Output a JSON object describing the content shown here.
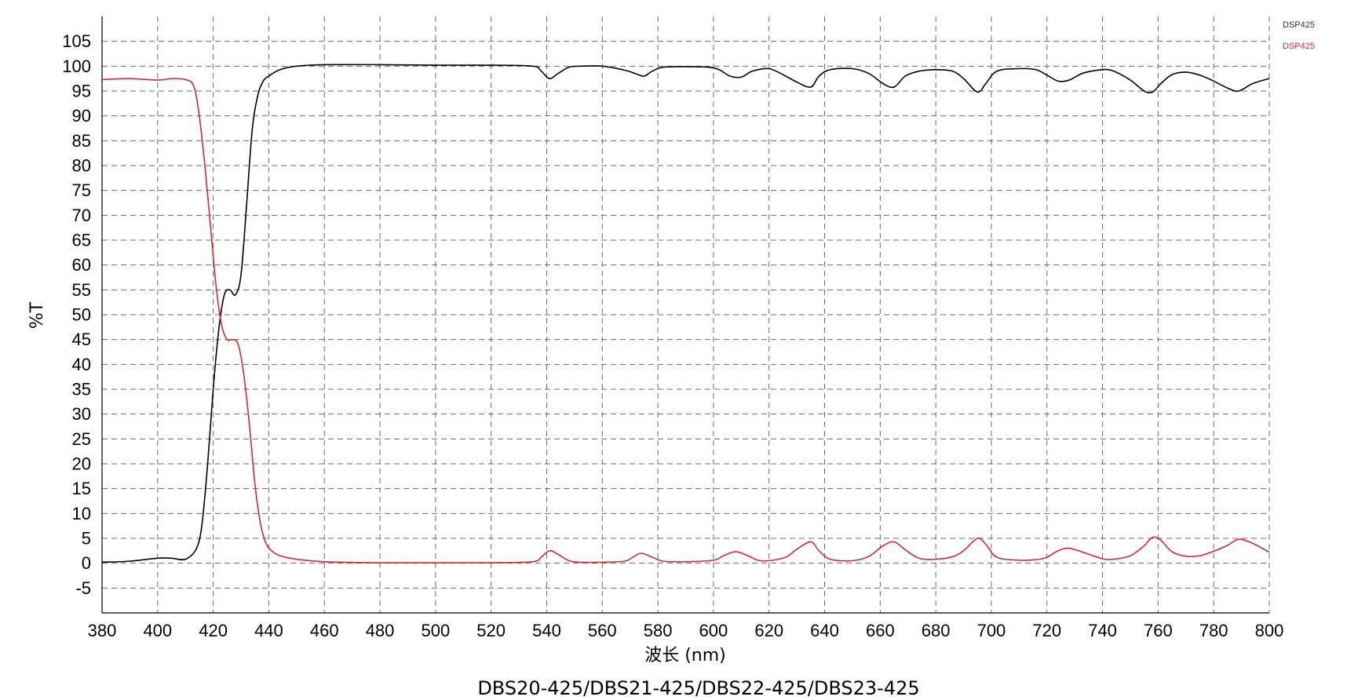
{
  "chart_data": {
    "type": "line",
    "title": "",
    "caption": "DBS20-425/DBS21-425/DBS22-425/DBS23-425",
    "xlabel": "波长 (nm)",
    "ylabel": "%T",
    "xlim": [
      380,
      800
    ],
    "ylim": [
      -10,
      110
    ],
    "xticks": [
      380,
      400,
      420,
      440,
      460,
      480,
      500,
      520,
      540,
      560,
      580,
      600,
      620,
      640,
      660,
      680,
      700,
      720,
      740,
      760,
      780,
      800
    ],
    "yticks": [
      -5,
      0,
      5,
      10,
      15,
      20,
      25,
      30,
      35,
      40,
      45,
      50,
      55,
      60,
      65,
      70,
      75,
      80,
      85,
      90,
      95,
      100,
      105
    ],
    "grid": true,
    "legend_position": "top-right",
    "series": [
      {
        "name": "DSP425",
        "color": "#000000",
        "x": [
          380,
          390,
          400,
          405,
          410,
          414,
          416,
          418,
          420,
          422,
          424,
          426,
          428,
          430,
          432,
          434,
          436,
          438,
          440,
          444,
          450,
          460,
          480,
          500,
          520,
          535,
          538,
          541,
          544,
          548,
          552,
          560,
          568,
          572,
          575,
          578,
          582,
          590,
          598,
          602,
          606,
          610,
          614,
          620,
          626,
          630,
          635,
          638,
          642,
          650,
          656,
          661,
          665,
          669,
          674,
          680,
          686,
          690,
          695,
          698,
          702,
          710,
          716,
          720,
          724,
          728,
          733,
          740,
          744,
          750,
          755,
          758,
          761,
          765,
          770,
          775,
          780,
          785,
          789,
          794,
          800
        ],
        "y": [
          0.2,
          0.4,
          1,
          1,
          0.8,
          3,
          8,
          20,
          35,
          47,
          54,
          55,
          54,
          58,
          72,
          87,
          94,
          97,
          98,
          99.3,
          100,
          100.3,
          100.3,
          100.2,
          100.2,
          100,
          99,
          97.5,
          98.5,
          99.8,
          100,
          100,
          99.2,
          98.5,
          98,
          99,
          99.8,
          99.9,
          99.8,
          99.3,
          98,
          97.8,
          99,
          99.5,
          98,
          96.8,
          95.8,
          98,
          99.3,
          99.5,
          98.5,
          96.5,
          95.8,
          98,
          99,
          99.3,
          99,
          97.5,
          94.8,
          96.5,
          99,
          99.5,
          99.3,
          98.2,
          97,
          97.2,
          98.6,
          99.3,
          99,
          97.2,
          95,
          94.8,
          96.5,
          98.3,
          98.8,
          98.2,
          97,
          95.6,
          95,
          96.5,
          97.5
        ]
      },
      {
        "name": "DSP425",
        "color": "#d42a2a",
        "x": [
          380,
          390,
          400,
          405,
          410,
          413,
          415,
          417,
          419,
          421,
          423,
          425,
          427,
          429,
          431,
          433,
          435,
          437,
          439,
          441,
          444,
          450,
          460,
          480,
          500,
          520,
          535,
          538,
          541,
          544,
          548,
          552,
          560,
          568,
          571,
          574,
          578,
          582,
          590,
          600,
          604,
          608,
          612,
          616,
          620,
          626,
          630,
          635,
          638,
          642,
          650,
          656,
          661,
          665,
          669,
          674,
          680,
          686,
          690,
          695,
          698,
          702,
          710,
          716,
          720,
          724,
          728,
          734,
          740,
          744,
          750,
          755,
          758,
          761,
          765,
          770,
          775,
          780,
          785,
          789,
          794,
          800
        ],
        "y": [
          97.3,
          97.5,
          97.2,
          97.5,
          97.3,
          96,
          90,
          80,
          68,
          56,
          48,
          45,
          45,
          44,
          38,
          28,
          16,
          8,
          4,
          2.5,
          1.5,
          0.8,
          0.3,
          0.1,
          0.1,
          0.1,
          0.3,
          1.2,
          2.5,
          1.8,
          0.5,
          0.2,
          0.2,
          0.4,
          1.2,
          2,
          1.2,
          0.4,
          0.3,
          0.6,
          1.6,
          2.3,
          1.6,
          0.6,
          0.5,
          1.2,
          2.8,
          4.3,
          2.5,
          0.8,
          0.5,
          1.4,
          3.5,
          4.3,
          2.7,
          1,
          0.8,
          1.3,
          2.5,
          5,
          3.8,
          1.2,
          0.6,
          0.7,
          1.2,
          2.5,
          3,
          2,
          0.9,
          0.8,
          1.5,
          3.5,
          5.2,
          4.6,
          2.3,
          1.4,
          1.5,
          2.4,
          3.6,
          4.8,
          4,
          2.2
        ]
      }
    ]
  }
}
